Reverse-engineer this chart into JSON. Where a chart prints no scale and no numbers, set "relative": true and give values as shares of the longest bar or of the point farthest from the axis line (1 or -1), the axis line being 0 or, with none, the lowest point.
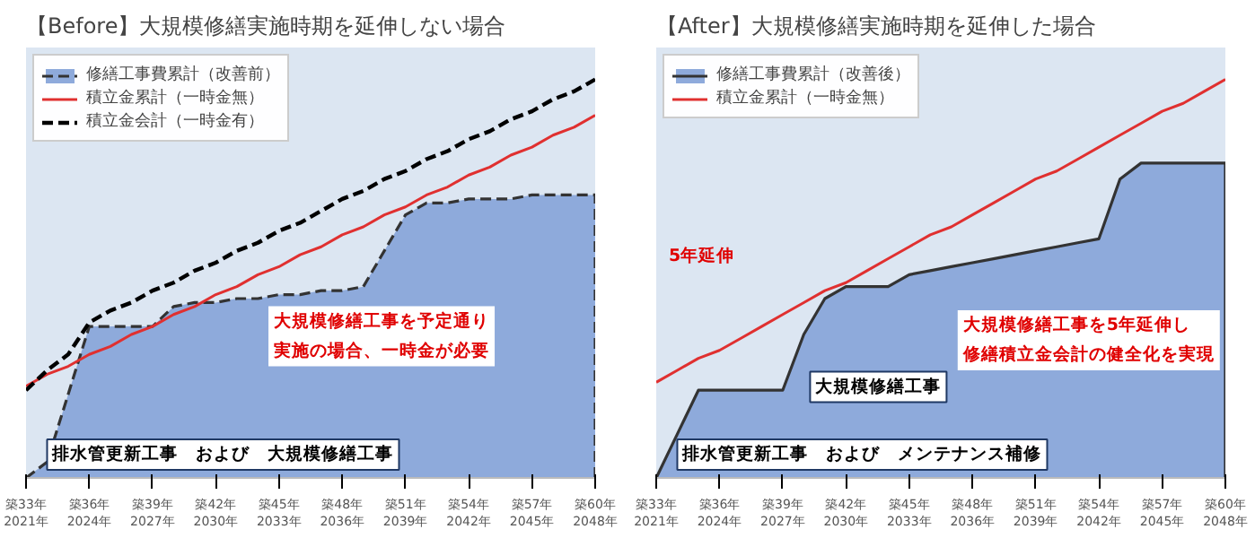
{
  "chart_data": [
    {
      "type": "line",
      "title": "【Before】大規模修繕実施時期を延伸しない場合",
      "relative": true,
      "legend": "top left",
      "categories": [
        "築33年\n2021年",
        null,
        null,
        "築36年\n2024年",
        null,
        null,
        "築39年\n2027年",
        null,
        null,
        "築42年\n2030年",
        null,
        null,
        "築45年\n2033年",
        null,
        null,
        "築48年\n2036年",
        null,
        null,
        "築51年\n2039年",
        null,
        null,
        "築54年\n2042年",
        null,
        null,
        "築57年\n2045年",
        null,
        null,
        "築60年\n2048年"
      ],
      "series": [
        {
          "name": "修繕工事費累計（改善前）",
          "type": "area",
          "color": "#8eaadb",
          "line_style": "dashed",
          "values": [
            0,
            0.04,
            0.21,
            0.38,
            0.38,
            0.38,
            0.38,
            0.43,
            0.44,
            0.44,
            0.45,
            0.45,
            0.46,
            0.46,
            0.47,
            0.47,
            0.48,
            0.57,
            0.66,
            0.69,
            0.69,
            0.7,
            0.7,
            0.7,
            0.71,
            0.71,
            0.71,
            0.71
          ]
        },
        {
          "name": "積立金累計（一時金無）",
          "color": "#e03030",
          "line_style": "solid",
          "values": [
            0.23,
            0.26,
            0.28,
            0.31,
            0.33,
            0.36,
            0.38,
            0.41,
            0.43,
            0.46,
            0.48,
            0.51,
            0.53,
            0.56,
            0.58,
            0.61,
            0.63,
            0.66,
            0.68,
            0.71,
            0.73,
            0.76,
            0.78,
            0.81,
            0.83,
            0.86,
            0.88,
            0.91
          ]
        },
        {
          "name": "積立金会計（一時金有）",
          "color": "#000000",
          "line_style": "dashed",
          "values": [
            0.22,
            0.27,
            0.31,
            0.39,
            0.42,
            0.44,
            0.47,
            0.49,
            0.52,
            0.54,
            0.57,
            0.59,
            0.62,
            0.64,
            0.67,
            0.7,
            0.72,
            0.75,
            0.77,
            0.8,
            0.82,
            0.85,
            0.87,
            0.9,
            0.92,
            0.95,
            0.97,
            1.0
          ]
        }
      ],
      "annotations": [
        "排水管更新工事　および　大規模修繕工事",
        "大規模修繕工事を予定通り実施の場合、一時金が必要"
      ]
    },
    {
      "type": "line",
      "title": "【After】大規模修繕実施時期を延伸した場合",
      "relative": true,
      "legend": "top left",
      "categories": [
        "築33年\n2021年",
        null,
        null,
        "築36年\n2024年",
        null,
        null,
        "築39年\n2027年",
        null,
        null,
        "築42年\n2030年",
        null,
        null,
        "築45年\n2033年",
        null,
        null,
        "築48年\n2036年",
        null,
        null,
        "築51年\n2039年",
        null,
        null,
        "築54年\n2042年",
        null,
        null,
        "築57年\n2045年",
        null,
        null,
        "築60年\n2048年"
      ],
      "series": [
        {
          "name": "修繕工事費累計（改善後）",
          "type": "area",
          "color": "#8eaadb",
          "line_style": "solid",
          "values": [
            0,
            0.11,
            0.22,
            0.22,
            0.22,
            0.22,
            0.22,
            0.36,
            0.45,
            0.48,
            0.48,
            0.48,
            0.51,
            0.52,
            0.53,
            0.54,
            0.55,
            0.56,
            0.57,
            0.58,
            0.59,
            0.6,
            0.75,
            0.79,
            0.79,
            0.79,
            0.79,
            0.79
          ]
        },
        {
          "name": "積立金累計（一時金無）",
          "color": "#e03030",
          "line_style": "solid",
          "values": [
            0.24,
            0.27,
            0.3,
            0.32,
            0.35,
            0.38,
            0.41,
            0.44,
            0.47,
            0.49,
            0.52,
            0.55,
            0.58,
            0.61,
            0.63,
            0.66,
            0.69,
            0.72,
            0.75,
            0.77,
            0.8,
            0.83,
            0.86,
            0.89,
            0.92,
            0.94,
            0.97,
            1.0
          ]
        }
      ],
      "annotations": [
        "排水管更新工事　および　メンテナンス補修",
        "大規模修繕工事",
        "5年延伸",
        "大規模修繕工事を5年延伸し修繕積立金会計の健全化を実現"
      ]
    }
  ]
}
